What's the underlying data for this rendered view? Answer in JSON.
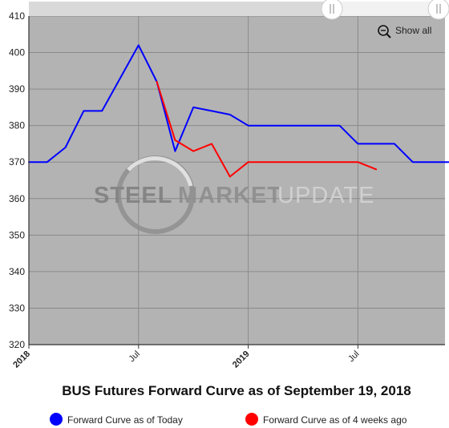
{
  "chart_data": {
    "type": "line",
    "title": "BUS Futures Forward Curve as of September 19, 2018",
    "xlabel": "",
    "ylabel": "",
    "ylim": [
      320,
      410
    ],
    "yticks": [
      410,
      400,
      390,
      380,
      370,
      360,
      350,
      340,
      330,
      320
    ],
    "x_axis": "monthly dates, Jan 2018 - Dec 2019",
    "xticks": [
      {
        "date": "2018-01",
        "label": "2018",
        "major": true
      },
      {
        "date": "2018-07",
        "label": "Jul",
        "major": false
      },
      {
        "date": "2019-01",
        "label": "2019",
        "major": true
      },
      {
        "date": "2019-07",
        "label": "Jul",
        "major": false
      }
    ],
    "grid": true,
    "legend_position": "bottom",
    "series": [
      {
        "name": "Forward Curve as of Today",
        "color": "#0000ff",
        "points": [
          {
            "x": "2018-01",
            "y": 370
          },
          {
            "x": "2018-02",
            "y": 370
          },
          {
            "x": "2018-03",
            "y": 374
          },
          {
            "x": "2018-04",
            "y": 384
          },
          {
            "x": "2018-05",
            "y": 384
          },
          {
            "x": "2018-06",
            "y": 393
          },
          {
            "x": "2018-07",
            "y": 402
          },
          {
            "x": "2018-08",
            "y": 392
          },
          {
            "x": "2018-09",
            "y": 373
          },
          {
            "x": "2018-10",
            "y": 385
          },
          {
            "x": "2018-11",
            "y": 384
          },
          {
            "x": "2018-12",
            "y": 383
          },
          {
            "x": "2019-01",
            "y": 380
          },
          {
            "x": "2019-02",
            "y": 380
          },
          {
            "x": "2019-03",
            "y": 380
          },
          {
            "x": "2019-04",
            "y": 380
          },
          {
            "x": "2019-05",
            "y": 380
          },
          {
            "x": "2019-06",
            "y": 380
          },
          {
            "x": "2019-07",
            "y": 375
          },
          {
            "x": "2019-08",
            "y": 375
          },
          {
            "x": "2019-09",
            "y": 375
          },
          {
            "x": "2019-10",
            "y": 370
          },
          {
            "x": "2019-11",
            "y": 370
          },
          {
            "x": "2019-12",
            "y": 370
          }
        ]
      },
      {
        "name": "Forward Curve as of 4 weeks ago",
        "color": "#ff0000",
        "points": [
          {
            "x": "2018-08",
            "y": 392
          },
          {
            "x": "2018-09",
            "y": 376
          },
          {
            "x": "2018-10",
            "y": 373
          },
          {
            "x": "2018-11",
            "y": 375
          },
          {
            "x": "2018-12",
            "y": 366
          },
          {
            "x": "2019-01",
            "y": 370
          },
          {
            "x": "2019-02",
            "y": 370
          },
          {
            "x": "2019-03",
            "y": 370
          },
          {
            "x": "2019-04",
            "y": 370
          },
          {
            "x": "2019-05",
            "y": 370
          },
          {
            "x": "2019-06",
            "y": 370
          },
          {
            "x": "2019-07",
            "y": 370
          },
          {
            "x": "2019-08",
            "y": 368
          }
        ]
      }
    ]
  },
  "controls": {
    "show_all_label": "Show all",
    "zoom_icon": "zoom-out-icon"
  },
  "watermark": {
    "text_left": "STEEL",
    "text_mid": "MARKET",
    "text_right": "UPDATE"
  },
  "colors": {
    "plot_background": "#b3b3b3",
    "grid": "#8a8a8a",
    "series_today": "#0000ff",
    "series_4weeks": "#ff0000"
  }
}
